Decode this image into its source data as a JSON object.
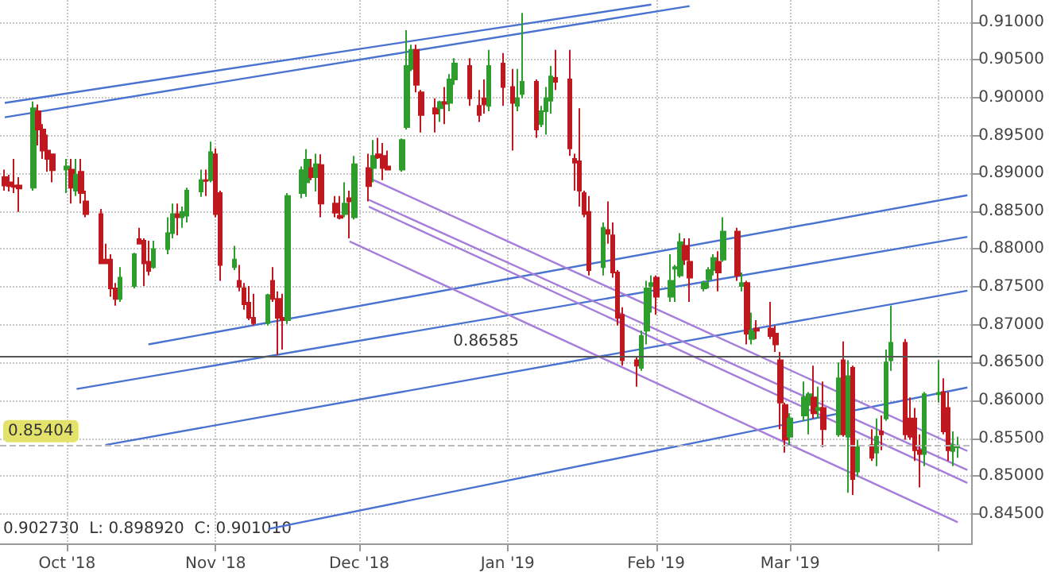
{
  "chart_data": {
    "type": "candlestick",
    "grid": true,
    "xlim": [
      "2018-09-17",
      "2019-04-08"
    ],
    "xticks": [
      {
        "value": "2018-10-01",
        "label": "Oct '18"
      },
      {
        "value": "2018-11-01",
        "label": "Nov '18"
      },
      {
        "value": "2018-12-01",
        "label": "Dec '18"
      },
      {
        "value": "2019-01-01",
        "label": "Jan '19"
      },
      {
        "value": "2019-02-01",
        "label": "Feb '19"
      },
      {
        "value": "2019-03-01",
        "label": "Mar '19"
      },
      {
        "value": "2019-04-01",
        "label": null
      }
    ],
    "ylim": [
      0.8411,
      0.9129
    ],
    "yticks": [
      {
        "value": 0.845,
        "label": "0.84500"
      },
      {
        "value": 0.85,
        "label": "0.85000"
      },
      {
        "value": 0.855,
        "label": "0.85500"
      },
      {
        "value": 0.86,
        "label": "0.86000"
      },
      {
        "value": 0.865,
        "label": "0.86500"
      },
      {
        "value": 0.87,
        "label": "0.87000"
      },
      {
        "value": 0.875,
        "label": "0.87500"
      },
      {
        "value": 0.88,
        "label": "0.88000"
      },
      {
        "value": 0.885,
        "label": "0.88500"
      },
      {
        "value": 0.89,
        "label": "0.89000"
      },
      {
        "value": 0.895,
        "label": "0.89500"
      },
      {
        "value": 0.9,
        "label": "0.90000"
      },
      {
        "value": 0.905,
        "label": "0.90500"
      },
      {
        "value": 0.91,
        "label": "0.91000"
      }
    ],
    "ref_lines": [
      {
        "axis": "y",
        "value": 0.86585,
        "label": "0.86585",
        "color": "#555555",
        "line_style": "solid"
      },
      {
        "axis": "y",
        "value": 0.85404,
        "label": "0.85404",
        "color": "#bbbbbb",
        "line_style": "dashed"
      }
    ],
    "annotations": [
      "0.902730  L: 0.898920  C: 0.901010"
    ],
    "series": [
      {
        "x": [
          "2018-09-18",
          "2018-09-19",
          "2018-09-20",
          "2018-09-21",
          "2018-09-24",
          "2018-09-25",
          "2018-09-26",
          "2018-09-27",
          "2018-09-28",
          "2018-10-01",
          "2018-10-02",
          "2018-10-03",
          "2018-10-04",
          "2018-10-05",
          "2018-10-08",
          "2018-10-09",
          "2018-10-10",
          "2018-10-11",
          "2018-10-12",
          "2018-10-15",
          "2018-10-16",
          "2018-10-17",
          "2018-10-18",
          "2018-10-19",
          "2018-10-22",
          "2018-10-23",
          "2018-10-24",
          "2018-10-25",
          "2018-10-26",
          "2018-10-29",
          "2018-10-30",
          "2018-10-31",
          "2018-11-01",
          "2018-11-02",
          "2018-11-05",
          "2018-11-06",
          "2018-11-07",
          "2018-11-08",
          "2018-11-09",
          "2018-11-12",
          "2018-11-13",
          "2018-11-14",
          "2018-11-15",
          "2018-11-16",
          "2018-11-19",
          "2018-11-20",
          "2018-11-21",
          "2018-11-22",
          "2018-11-23",
          "2018-11-26",
          "2018-11-27",
          "2018-11-28",
          "2018-11-29",
          "2018-11-30",
          "2018-12-03",
          "2018-12-04",
          "2018-12-05",
          "2018-12-06",
          "2018-12-07",
          "2018-12-10",
          "2018-12-11",
          "2018-12-12",
          "2018-12-13",
          "2018-12-14",
          "2018-12-17",
          "2018-12-18",
          "2018-12-19",
          "2018-12-20",
          "2018-12-21",
          "2018-12-24",
          "2018-12-26",
          "2018-12-27",
          "2018-12-28",
          "2018-12-31",
          "2019-01-02",
          "2019-01-03",
          "2019-01-04",
          "2019-01-07",
          "2019-01-08",
          "2019-01-09",
          "2019-01-10",
          "2019-01-11",
          "2019-01-14",
          "2019-01-15",
          "2019-01-16",
          "2019-01-17",
          "2019-01-18",
          "2019-01-21",
          "2019-01-22",
          "2019-01-23",
          "2019-01-24",
          "2019-01-25",
          "2019-01-28",
          "2019-01-29",
          "2019-01-30",
          "2019-01-31",
          "2019-02-01",
          "2019-02-04",
          "2019-02-05",
          "2019-02-06",
          "2019-02-07",
          "2019-02-08",
          "2019-02-11",
          "2019-02-12",
          "2019-02-13",
          "2019-02-14",
          "2019-02-15",
          "2019-02-18",
          "2019-02-19",
          "2019-02-20",
          "2019-02-21",
          "2019-02-22",
          "2019-02-25",
          "2019-02-26",
          "2019-02-27",
          "2019-02-28",
          "2019-03-01",
          "2019-03-04",
          "2019-03-05",
          "2019-03-06",
          "2019-03-07",
          "2019-03-08",
          "2019-03-11",
          "2019-03-12",
          "2019-03-13",
          "2019-03-14",
          "2019-03-15",
          "2019-03-18",
          "2019-03-19",
          "2019-03-20",
          "2019-03-21",
          "2019-03-22",
          "2019-03-25",
          "2019-03-26",
          "2019-03-27",
          "2019-03-28",
          "2019-03-29",
          "2019-04-01",
          "2019-04-02",
          "2019-04-03",
          "2019-04-04",
          "2019-04-05"
        ],
        "ohlc": [
          [
            0.8895,
            0.8905,
            0.8877,
            0.8884
          ],
          [
            0.8888,
            0.8898,
            0.8876,
            0.8883
          ],
          [
            0.8884,
            0.8919,
            0.8874,
            0.8882
          ],
          [
            0.8884,
            0.8895,
            0.8849,
            0.888
          ],
          [
            0.8881,
            0.8995,
            0.8877,
            0.8986
          ],
          [
            0.8982,
            0.8991,
            0.8937,
            0.8958
          ],
          [
            0.8958,
            0.8965,
            0.8919,
            0.893
          ],
          [
            0.893,
            0.8951,
            0.8902,
            0.8919
          ],
          [
            0.8925,
            0.8926,
            0.8888,
            0.8904
          ],
          [
            0.8905,
            0.8919,
            0.8874,
            0.8909
          ],
          [
            0.8905,
            0.8919,
            0.886,
            0.8881
          ],
          [
            0.8877,
            0.8919,
            0.887,
            0.8898
          ],
          [
            0.8902,
            0.8919,
            0.886,
            0.8874
          ],
          [
            0.8863,
            0.8877,
            0.8842,
            0.8846
          ],
          [
            0.8846,
            0.8853,
            0.878,
            0.8781
          ],
          [
            0.8786,
            0.8807,
            0.878,
            0.8781
          ],
          [
            0.8786,
            0.8793,
            0.8737,
            0.8748
          ],
          [
            0.8748,
            0.8755,
            0.8725,
            0.8734
          ],
          [
            0.8734,
            0.8776,
            0.873,
            0.8762
          ],
          [
            0.8751,
            0.8795,
            0.8748,
            0.8793
          ],
          [
            0.8813,
            0.8828,
            0.8806,
            0.8807
          ],
          [
            0.8811,
            0.8814,
            0.8751,
            0.8781
          ],
          [
            0.8783,
            0.8811,
            0.8765,
            0.8771
          ],
          [
            0.8776,
            0.8811,
            0.8774,
            0.88
          ],
          [
            0.88,
            0.8842,
            0.8793,
            0.8821
          ],
          [
            0.8821,
            0.886,
            0.8814,
            0.8846
          ],
          [
            0.8846,
            0.886,
            0.8818,
            0.8842
          ],
          [
            0.8842,
            0.8856,
            0.8828,
            0.8849
          ],
          [
            0.8844,
            0.8881,
            0.8835,
            0.8877
          ],
          [
            0.8876,
            0.8905,
            0.8869,
            0.8891
          ],
          [
            0.8891,
            0.8905,
            0.887,
            0.889
          ],
          [
            0.8891,
            0.8942,
            0.8888,
            0.8928
          ],
          [
            0.8925,
            0.8933,
            0.8842,
            0.8846
          ],
          [
            0.8874,
            0.8877,
            0.8758,
            0.8779
          ],
          [
            0.8776,
            0.8804,
            0.8772,
            0.8786
          ],
          [
            0.8758,
            0.8779,
            0.8744,
            0.875
          ],
          [
            0.8748,
            0.8755,
            0.872,
            0.8727
          ],
          [
            0.8729,
            0.8751,
            0.8706,
            0.8709
          ],
          [
            0.8709,
            0.8741,
            0.8699,
            0.8702
          ],
          [
            0.8702,
            0.8741,
            0.8699,
            0.8739
          ],
          [
            0.8758,
            0.8776,
            0.873,
            0.8734
          ],
          [
            0.8734,
            0.8744,
            0.866,
            0.8709
          ],
          [
            0.8709,
            0.8741,
            0.8667,
            0.8706
          ],
          [
            0.8706,
            0.8874,
            0.8701,
            0.887
          ],
          [
            0.8874,
            0.8909,
            0.8867,
            0.8904
          ],
          [
            0.8888,
            0.8932,
            0.8869,
            0.8918
          ],
          [
            0.8907,
            0.8919,
            0.8891,
            0.8895
          ],
          [
            0.8895,
            0.8926,
            0.8876,
            0.8912
          ],
          [
            0.8911,
            0.8925,
            0.8842,
            0.886
          ],
          [
            0.886,
            0.887,
            0.8842,
            0.8848
          ],
          [
            0.8844,
            0.887,
            0.8839,
            0.8841
          ],
          [
            0.8846,
            0.8888,
            0.8842,
            0.886
          ],
          [
            0.8867,
            0.8877,
            0.8814,
            0.8863
          ],
          [
            0.8842,
            0.8923,
            0.8839,
            0.8912
          ],
          [
            0.8907,
            0.8926,
            0.8863,
            0.8883
          ],
          [
            0.8907,
            0.8944,
            0.8888,
            0.8923
          ],
          [
            0.8925,
            0.8947,
            0.8919,
            0.8921
          ],
          [
            0.8923,
            0.894,
            0.8891,
            0.8907
          ],
          [
            0.8909,
            0.893,
            0.8904,
            0.8905
          ],
          [
            0.8905,
            0.8946,
            0.8902,
            0.8944
          ],
          [
            0.8961,
            0.9089,
            0.8958,
            0.9042
          ],
          [
            0.9038,
            0.907,
            0.9035,
            0.9063
          ],
          [
            0.9063,
            0.907,
            0.9007,
            0.9017
          ],
          [
            0.9007,
            0.901,
            0.8954,
            0.8977
          ],
          [
            0.8986,
            0.8999,
            0.8954,
            0.8979
          ],
          [
            0.8986,
            0.8996,
            0.8968,
            0.8994
          ],
          [
            0.8994,
            0.9014,
            0.8965,
            0.8992
          ],
          [
            0.8993,
            0.9031,
            0.8982,
            0.9024
          ],
          [
            0.9024,
            0.9052,
            0.9017,
            0.9045
          ],
          [
            0.9042,
            0.9052,
            0.8989,
            0.8999
          ],
          [
            0.8989,
            0.901,
            0.8968,
            0.8977
          ],
          [
            0.8999,
            0.9024,
            0.8979,
            0.8991
          ],
          [
            0.8989,
            0.9063,
            0.8982,
            0.9042
          ],
          [
            0.9045,
            0.9059,
            0.8989,
            0.9014
          ],
          [
            0.9014,
            0.9038,
            0.893,
            0.8993
          ],
          [
            0.8989,
            0.9038,
            0.8982,
            0.8999
          ],
          [
            0.9005,
            0.9112,
            0.8999,
            0.9021
          ],
          [
            0.9021,
            0.9024,
            0.8947,
            0.8958
          ],
          [
            0.8965,
            0.8989,
            0.8961,
            0.8982
          ],
          [
            0.8982,
            0.9014,
            0.8951,
            0.8999
          ],
          [
            0.8996,
            0.9042,
            0.8979,
            0.9028
          ],
          [
            0.9026,
            0.9063,
            0.901,
            0.9021
          ],
          [
            0.9024,
            0.9063,
            0.8923,
            0.8933
          ],
          [
            0.8919,
            0.8926,
            0.8877,
            0.8914
          ],
          [
            0.8916,
            0.8986,
            0.8856,
            0.8877
          ],
          [
            0.8874,
            0.8877,
            0.8842,
            0.8846
          ],
          [
            0.8849,
            0.887,
            0.8765,
            0.8772
          ],
          [
            0.8776,
            0.8835,
            0.8765,
            0.8828
          ],
          [
            0.8825,
            0.8863,
            0.8807,
            0.882
          ],
          [
            0.8818,
            0.8835,
            0.8762,
            0.8769
          ],
          [
            0.8769,
            0.8772,
            0.8699,
            0.8709
          ],
          [
            0.8713,
            0.8723,
            0.8646,
            0.8653
          ],
          [
            0.8653,
            0.8657,
            0.8618,
            0.8646
          ],
          [
            0.8643,
            0.8692,
            0.8639,
            0.8685
          ],
          [
            0.8692,
            0.8758,
            0.8674,
            0.8748
          ],
          [
            0.8751,
            0.8765,
            0.8716,
            0.8755
          ],
          [
            0.8762,
            0.8765,
            0.8713,
            0.8737
          ],
          [
            0.8737,
            0.8793,
            0.873,
            0.8758
          ],
          [
            0.8774,
            0.8779,
            0.873,
            0.8776
          ],
          [
            0.8765,
            0.8821,
            0.8762,
            0.8809
          ],
          [
            0.8804,
            0.8814,
            0.8779,
            0.8786
          ],
          [
            0.8783,
            0.8814,
            0.873,
            0.8762
          ],
          [
            0.8748,
            0.8758,
            0.8744,
            0.8755
          ],
          [
            0.876,
            0.8776,
            0.8748,
            0.8772
          ],
          [
            0.8772,
            0.8793,
            0.8765,
            0.8788
          ],
          [
            0.8783,
            0.8797,
            0.8744,
            0.8769
          ],
          [
            0.8786,
            0.8842,
            0.8783,
            0.8823
          ],
          [
            0.8823,
            0.8828,
            0.8758,
            0.8765
          ],
          [
            0.8751,
            0.8769,
            0.8744,
            0.8755
          ],
          [
            0.8755,
            0.8758,
            0.8674,
            0.8688
          ],
          [
            0.8681,
            0.8716,
            0.8674,
            0.8692
          ],
          [
            0.8695,
            0.8706,
            0.8681,
            0.8692
          ],
          [
            0.8695,
            0.873,
            0.8681,
            0.8685
          ],
          [
            0.8688,
            0.8699,
            0.8664,
            0.8674
          ],
          [
            0.8653,
            0.8664,
            0.8562,
            0.8597
          ],
          [
            0.8594,
            0.8597,
            0.8531,
            0.8548
          ],
          [
            0.8552,
            0.8583,
            0.8541,
            0.8576
          ],
          [
            0.858,
            0.8625,
            0.8573,
            0.8604
          ],
          [
            0.8594,
            0.8611,
            0.8555,
            0.8608
          ],
          [
            0.8604,
            0.8646,
            0.8576,
            0.8583
          ],
          [
            0.8587,
            0.8618,
            0.8576,
            0.859
          ],
          [
            0.859,
            0.8625,
            0.8538,
            0.8562
          ],
          [
            0.8555,
            0.865,
            0.8552,
            0.8629
          ],
          [
            0.8653,
            0.8678,
            0.8552,
            0.8555
          ],
          [
            0.8552,
            0.8653,
            0.8478,
            0.8632
          ],
          [
            0.8643,
            0.8646,
            0.8475,
            0.8496
          ],
          [
            0.8506,
            0.8548,
            0.8499,
            0.8538
          ],
          [
            0.8541,
            0.8562,
            0.852,
            0.8524
          ],
          [
            0.8531,
            0.8576,
            0.8513,
            0.8552
          ],
          [
            0.8559,
            0.858,
            0.8534,
            0.8555
          ],
          [
            0.8576,
            0.8667,
            0.8573,
            0.865
          ],
          [
            0.8653,
            0.8725,
            0.8639,
            0.8676
          ],
          [
            0.8676,
            0.8681,
            0.8548,
            0.8555
          ],
          [
            0.8576,
            0.8604,
            0.8548,
            0.8552
          ],
          [
            0.8576,
            0.859,
            0.852,
            0.8534
          ],
          [
            0.8534,
            0.8555,
            0.8485,
            0.8529
          ],
          [
            0.8529,
            0.8611,
            0.8513,
            0.8608
          ],
          [
            0.8608,
            0.8653,
            0.8597,
            0.861
          ],
          [
            0.8611,
            0.8629,
            0.8555,
            0.8559
          ],
          [
            0.859,
            0.8611,
            0.852,
            0.8534
          ],
          [
            0.8533,
            0.8559,
            0.8513,
            0.8541
          ],
          [
            0.8538,
            0.8552,
            0.8524,
            0.85404
          ]
        ],
        "colors": [
          "#c0181f",
          "#c0181f",
          "#c0181f",
          "#c0181f",
          "#2e9d2e",
          "#c0181f",
          "#c0181f",
          "#c0181f",
          "#c0181f",
          "#2e9d2e",
          "#c0181f",
          "#2e9d2e",
          "#c0181f",
          "#c0181f",
          "#c0181f",
          "#c0181f",
          "#c0181f",
          "#c0181f",
          "#2e9d2e",
          "#2e9d2e",
          "#c0181f",
          "#c0181f",
          "#c0181f",
          "#2e9d2e",
          "#2e9d2e",
          "#2e9d2e",
          "#c0181f",
          "#2e9d2e",
          "#2e9d2e",
          "#2e9d2e",
          "#c0181f",
          "#2e9d2e",
          "#c0181f",
          "#c0181f",
          "#2e9d2e",
          "#c0181f",
          "#c0181f",
          "#c0181f",
          "#c0181f",
          "#2e9d2e",
          "#c0181f",
          "#c0181f",
          "#c0181f",
          "#2e9d2e",
          "#2e9d2e",
          "#2e9d2e",
          "#c0181f",
          "#2e9d2e",
          "#c0181f",
          "#c0181f",
          "#c0181f",
          "#2e9d2e",
          "#c0181f",
          "#2e9d2e",
          "#c0181f",
          "#2e9d2e",
          "#c0181f",
          "#c0181f",
          "#c0181f",
          "#2e9d2e",
          "#2e9d2e",
          "#2e9d2e",
          "#c0181f",
          "#c0181f",
          "#c0181f",
          "#2e9d2e",
          "#c0181f",
          "#2e9d2e",
          "#2e9d2e",
          "#c0181f",
          "#c0181f",
          "#c0181f",
          "#2e9d2e",
          "#c0181f",
          "#c0181f",
          "#2e9d2e",
          "#2e9d2e",
          "#c0181f",
          "#2e9d2e",
          "#2e9d2e",
          "#2e9d2e",
          "#c0181f",
          "#c0181f",
          "#c0181f",
          "#c0181f",
          "#c0181f",
          "#c0181f",
          "#2e9d2e",
          "#c0181f",
          "#c0181f",
          "#c0181f",
          "#c0181f",
          "#c0181f",
          "#2e9d2e",
          "#2e9d2e",
          "#2e9d2e",
          "#c0181f",
          "#2e9d2e",
          "#2e9d2e",
          "#2e9d2e",
          "#c0181f",
          "#c0181f",
          "#2e9d2e",
          "#2e9d2e",
          "#2e9d2e",
          "#c0181f",
          "#2e9d2e",
          "#c0181f",
          "#2e9d2e",
          "#c0181f",
          "#2e9d2e",
          "#c0181f",
          "#c0181f",
          "#c0181f",
          "#c0181f",
          "#c0181f",
          "#2e9d2e",
          "#2e9d2e",
          "#2e9d2e",
          "#c0181f",
          "#2e9d2e",
          "#c0181f",
          "#2e9d2e",
          "#c0181f",
          "#2e9d2e",
          "#c0181f",
          "#2e9d2e",
          "#c0181f",
          "#2e9d2e",
          "#c0181f",
          "#2e9d2e",
          "#2e9d2e",
          "#c0181f",
          "#c0181f",
          "#c0181f",
          "#c0181f",
          "#2e9d2e",
          "#2e9d2e",
          "#c0181f",
          "#c0181f",
          "#2e9d2e",
          "#2e9d2e"
        ]
      },
      {
        "type": "line",
        "color": "#4a72d0",
        "x": [
          "2018-09-18",
          "2019-01-31"
        ],
        "values": [
          0.8993,
          0.9123
        ]
      },
      {
        "type": "line",
        "color": "#4a72d0",
        "x": [
          "2018-09-18",
          "2019-02-08"
        ],
        "values": [
          0.8974,
          0.9121
        ]
      },
      {
        "type": "line",
        "color": "#4a72d0",
        "x": [
          "2018-10-18",
          "2019-04-07"
        ],
        "values": [
          0.8674,
          0.8871
        ]
      },
      {
        "type": "line",
        "color": "#4a72d0",
        "x": [
          "2018-10-03",
          "2019-04-07"
        ],
        "values": [
          0.8615,
          0.8816
        ]
      },
      {
        "type": "line",
        "color": "#4a72d0",
        "x": [
          "2018-10-09",
          "2019-04-07"
        ],
        "values": [
          0.8541,
          0.8745
        ]
      },
      {
        "type": "line",
        "color": "#4a72d0",
        "x": [
          "2018-11-12",
          "2019-04-07"
        ],
        "values": [
          0.843,
          0.8617
        ]
      },
      {
        "type": "line",
        "color": "#a57ddb",
        "x": [
          "2018-12-03",
          "2019-04-07"
        ],
        "values": [
          0.8894,
          0.8533
        ]
      },
      {
        "type": "line",
        "color": "#a57ddb",
        "x": [
          "2018-12-03",
          "2019-04-07"
        ],
        "values": [
          0.8865,
          0.8508
        ]
      },
      {
        "type": "line",
        "color": "#a57ddb",
        "x": [
          "2018-12-03",
          "2019-04-07"
        ],
        "values": [
          0.8856,
          0.8491
        ]
      },
      {
        "type": "line",
        "color": "#a57ddb",
        "x": [
          "2018-11-29",
          "2019-04-05"
        ],
        "values": [
          0.881,
          0.8439
        ]
      }
    ]
  }
}
